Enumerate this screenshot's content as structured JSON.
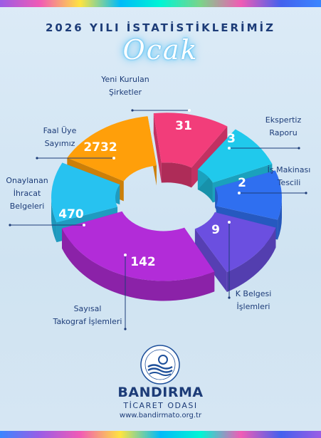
{
  "header": {
    "title": "2026 YILI İSTATİSTİKLERİMİZ",
    "month": "Ocak"
  },
  "chart_data": {
    "type": "pie",
    "style": "3d-exploded-donut",
    "slices": [
      {
        "label_lines": [
          "Yeni Kurulan",
          "Şirketler"
        ],
        "value": "31",
        "color": "#f23d7a"
      },
      {
        "label_lines": [
          "Ekspertiz",
          "Raporu"
        ],
        "value": "3",
        "color": "#20c9ec"
      },
      {
        "label_lines": [
          "İş Makinası",
          "Tescili"
        ],
        "value": "2",
        "color": "#2f6ff0"
      },
      {
        "label_lines": [
          "K Belgesi",
          "İşlemleri"
        ],
        "value": "9",
        "color": "#6b4fe0"
      },
      {
        "label_lines": [
          "Sayısal",
          "Takograf İşlemleri"
        ],
        "value": "142",
        "color": "#b22cd8"
      },
      {
        "label_lines": [
          "Onaylanan",
          "İhracat",
          "Belgeleri"
        ],
        "value": "470",
        "color": "#27c2f0"
      },
      {
        "label_lines": [
          "Faal Üye",
          "Sayımız"
        ],
        "value": "2732",
        "color": "#ff9f0a"
      }
    ]
  },
  "footer": {
    "brand": "BANDIRMA",
    "brand_sub": "TİCARET ODASI",
    "url": "www.bandirmato.org.tr"
  }
}
